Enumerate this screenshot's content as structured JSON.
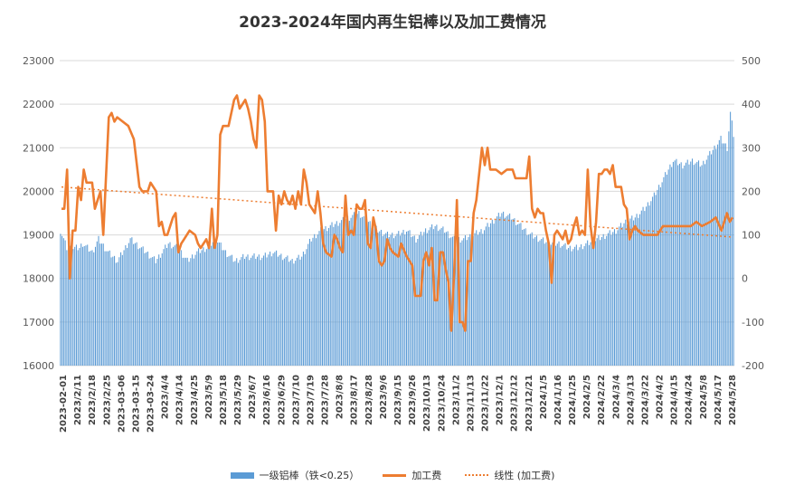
{
  "chart_data": {
    "type": "bar+line",
    "title": "2023-2024年国内再生铝棒以及加工费情况",
    "legend": [
      "一级铝棒（铁<0.25）",
      "加工费",
      "线性 (加工费)"
    ],
    "legend_position": "bottom",
    "grid": true,
    "y_left": {
      "min": 16000,
      "max": 23000,
      "ticks": [
        16000,
        17000,
        18000,
        19000,
        20000,
        21000,
        22000,
        23000
      ]
    },
    "y_right": {
      "min": -200,
      "max": 500,
      "ticks": [
        -200,
        -100,
        0,
        100,
        200,
        300,
        400,
        500
      ]
    },
    "x_tick_labels": [
      "2023-02-01",
      "2023/2/11",
      "2023/2/18",
      "2023/2/25",
      "2023-03-06",
      "2023-03-15",
      "2023-03-24",
      "2023/4/4",
      "2023/4/14",
      "2023/4/25",
      "2023/5/9",
      "2023/5/18",
      "2023/5/29",
      "2023/6/7",
      "2023/6/16",
      "2023/6/29",
      "2023/7/10",
      "2023/7/19",
      "2023/7/28",
      "2023/8/8",
      "2023/8/17",
      "2023/8/28",
      "2023/9/6",
      "2023/9/15",
      "2023/9/26",
      "2023/10/13",
      "2023/10/24",
      "2023/11/2",
      "2023/11/13",
      "2023/11/22",
      "2023/12/1",
      "2023/12/12",
      "2023/12/21",
      "2024/1/5",
      "2024/1/16",
      "2024/1/25",
      "2024/2/5",
      "2024/2/22",
      "2024/3/4",
      "2024/3/13",
      "2024/3/22",
      "2024/4/2",
      "2024/4/15",
      "2024/4/24",
      "2024/5/8",
      "2024/5/17",
      "2024/5/28"
    ],
    "bar_series": {
      "name": "一级铝棒（铁<0.25）",
      "color": "#5b9bd5",
      "keypoints": [
        [
          0,
          19100
        ],
        [
          2,
          18900
        ],
        [
          4,
          18700
        ],
        [
          12,
          18700
        ],
        [
          14,
          18800
        ],
        [
          20,
          18600
        ],
        [
          24,
          18900
        ],
        [
          30,
          18600
        ],
        [
          36,
          18400
        ],
        [
          44,
          18900
        ],
        [
          54,
          18600
        ],
        [
          60,
          18400
        ],
        [
          68,
          18800
        ],
        [
          74,
          18700
        ],
        [
          80,
          18400
        ],
        [
          86,
          18600
        ],
        [
          92,
          18700
        ],
        [
          98,
          18900
        ],
        [
          104,
          18600
        ],
        [
          110,
          18400
        ],
        [
          116,
          18500
        ],
        [
          122,
          18500
        ],
        [
          128,
          18500
        ],
        [
          134,
          18600
        ],
        [
          140,
          18500
        ],
        [
          146,
          18400
        ],
        [
          152,
          18500
        ],
        [
          158,
          18900
        ],
        [
          164,
          19100
        ],
        [
          170,
          19200
        ],
        [
          176,
          19300
        ],
        [
          182,
          19400
        ],
        [
          188,
          19500
        ],
        [
          194,
          19300
        ],
        [
          200,
          19100
        ],
        [
          206,
          19000
        ],
        [
          212,
          19000
        ],
        [
          218,
          19100
        ],
        [
          224,
          18900
        ],
        [
          230,
          19100
        ],
        [
          236,
          19200
        ],
        [
          242,
          19100
        ],
        [
          248,
          18900
        ],
        [
          254,
          18900
        ],
        [
          260,
          19000
        ],
        [
          266,
          19100
        ],
        [
          272,
          19300
        ],
        [
          278,
          19500
        ],
        [
          284,
          19400
        ],
        [
          290,
          19200
        ],
        [
          296,
          19000
        ],
        [
          302,
          18900
        ],
        [
          308,
          18800
        ],
        [
          314,
          18800
        ],
        [
          320,
          18700
        ],
        [
          326,
          18700
        ],
        [
          332,
          18800
        ],
        [
          338,
          18900
        ],
        [
          344,
          19000
        ],
        [
          350,
          19100
        ],
        [
          356,
          19300
        ],
        [
          362,
          19400
        ],
        [
          368,
          19600
        ],
        [
          374,
          19900
        ],
        [
          380,
          20300
        ],
        [
          386,
          20700
        ],
        [
          392,
          20600
        ],
        [
          398,
          20700
        ],
        [
          404,
          20600
        ],
        [
          410,
          20900
        ],
        [
          416,
          21200
        ],
        [
          420,
          21000
        ],
        [
          422,
          21800
        ],
        [
          424,
          21300
        ]
      ]
    },
    "line_series": {
      "name": "加工费",
      "color": "#ed7d31",
      "keypoints": [
        [
          0,
          160
        ],
        [
          2,
          160
        ],
        [
          4,
          250
        ],
        [
          6,
          0
        ],
        [
          8,
          110
        ],
        [
          10,
          110
        ],
        [
          12,
          210
        ],
        [
          14,
          180
        ],
        [
          16,
          250
        ],
        [
          18,
          220
        ],
        [
          22,
          220
        ],
        [
          24,
          160
        ],
        [
          28,
          200
        ],
        [
          30,
          100
        ],
        [
          34,
          370
        ],
        [
          36,
          380
        ],
        [
          38,
          360
        ],
        [
          40,
          370
        ],
        [
          44,
          360
        ],
        [
          48,
          350
        ],
        [
          52,
          320
        ],
        [
          56,
          210
        ],
        [
          58,
          200
        ],
        [
          62,
          200
        ],
        [
          64,
          220
        ],
        [
          68,
          200
        ],
        [
          70,
          120
        ],
        [
          72,
          130
        ],
        [
          74,
          100
        ],
        [
          76,
          100
        ],
        [
          80,
          140
        ],
        [
          82,
          150
        ],
        [
          84,
          60
        ],
        [
          86,
          80
        ],
        [
          88,
          90
        ],
        [
          92,
          110
        ],
        [
          96,
          100
        ],
        [
          98,
          80
        ],
        [
          100,
          70
        ],
        [
          104,
          90
        ],
        [
          106,
          70
        ],
        [
          108,
          160
        ],
        [
          110,
          70
        ],
        [
          112,
          100
        ],
        [
          114,
          330
        ],
        [
          116,
          350
        ],
        [
          120,
          350
        ],
        [
          124,
          410
        ],
        [
          126,
          420
        ],
        [
          128,
          390
        ],
        [
          132,
          410
        ],
        [
          134,
          390
        ],
        [
          136,
          360
        ],
        [
          138,
          320
        ],
        [
          140,
          300
        ],
        [
          142,
          420
        ],
        [
          144,
          410
        ],
        [
          146,
          360
        ],
        [
          148,
          200
        ],
        [
          152,
          200
        ],
        [
          154,
          110
        ],
        [
          156,
          190
        ],
        [
          158,
          170
        ],
        [
          160,
          200
        ],
        [
          162,
          180
        ],
        [
          164,
          170
        ],
        [
          166,
          190
        ],
        [
          168,
          160
        ],
        [
          170,
          200
        ],
        [
          172,
          170
        ],
        [
          174,
          250
        ],
        [
          176,
          220
        ],
        [
          178,
          170
        ],
        [
          180,
          160
        ],
        [
          182,
          150
        ],
        [
          184,
          200
        ],
        [
          186,
          150
        ],
        [
          188,
          80
        ],
        [
          190,
          60
        ],
        [
          194,
          50
        ],
        [
          196,
          100
        ],
        [
          198,
          90
        ],
        [
          200,
          70
        ],
        [
          202,
          60
        ],
        [
          204,
          190
        ],
        [
          206,
          100
        ],
        [
          208,
          110
        ],
        [
          210,
          100
        ],
        [
          212,
          170
        ],
        [
          214,
          160
        ],
        [
          216,
          160
        ],
        [
          218,
          180
        ],
        [
          220,
          80
        ],
        [
          222,
          70
        ],
        [
          224,
          140
        ],
        [
          226,
          110
        ],
        [
          228,
          40
        ],
        [
          230,
          30
        ],
        [
          232,
          40
        ],
        [
          234,
          90
        ],
        [
          236,
          70
        ],
        [
          238,
          60
        ],
        [
          242,
          50
        ],
        [
          244,
          80
        ],
        [
          248,
          50
        ],
        [
          252,
          30
        ],
        [
          254,
          -40
        ],
        [
          258,
          -40
        ],
        [
          260,
          40
        ],
        [
          262,
          60
        ],
        [
          264,
          30
        ],
        [
          266,
          70
        ],
        [
          268,
          -50
        ],
        [
          270,
          -50
        ],
        [
          272,
          60
        ],
        [
          274,
          60
        ],
        [
          276,
          20
        ],
        [
          278,
          -10
        ],
        [
          280,
          -120
        ],
        [
          282,
          10
        ],
        [
          284,
          180
        ],
        [
          286,
          -100
        ],
        [
          288,
          -100
        ],
        [
          290,
          -120
        ],
        [
          292,
          40
        ],
        [
          294,
          40
        ],
        [
          296,
          150
        ],
        [
          298,
          180
        ],
        [
          300,
          240
        ],
        [
          302,
          300
        ],
        [
          304,
          260
        ],
        [
          306,
          300
        ],
        [
          308,
          250
        ],
        [
          312,
          250
        ],
        [
          316,
          240
        ],
        [
          320,
          250
        ],
        [
          324,
          250
        ],
        [
          326,
          230
        ],
        [
          330,
          230
        ],
        [
          334,
          230
        ],
        [
          336,
          280
        ],
        [
          338,
          160
        ],
        [
          340,
          140
        ],
        [
          342,
          160
        ],
        [
          344,
          150
        ],
        [
          346,
          150
        ],
        [
          348,
          110
        ],
        [
          350,
          80
        ],
        [
          352,
          -10
        ],
        [
          354,
          100
        ],
        [
          356,
          110
        ],
        [
          358,
          100
        ],
        [
          360,
          90
        ],
        [
          362,
          110
        ],
        [
          364,
          80
        ],
        [
          366,
          90
        ],
        [
          368,
          120
        ],
        [
          370,
          140
        ],
        [
          372,
          100
        ],
        [
          374,
          110
        ],
        [
          376,
          100
        ],
        [
          378,
          250
        ],
        [
          380,
          120
        ],
        [
          382,
          70
        ],
        [
          384,
          130
        ],
        [
          386,
          240
        ],
        [
          388,
          240
        ],
        [
          390,
          250
        ],
        [
          392,
          250
        ],
        [
          394,
          240
        ],
        [
          396,
          260
        ],
        [
          398,
          210
        ],
        [
          402,
          210
        ],
        [
          404,
          170
        ],
        [
          406,
          160
        ],
        [
          408,
          90
        ],
        [
          410,
          110
        ],
        [
          412,
          120
        ],
        [
          414,
          110
        ],
        [
          418,
          100
        ],
        [
          424,
          100
        ],
        [
          428,
          100
        ],
        [
          432,
          120
        ],
        [
          438,
          120
        ],
        [
          444,
          120
        ],
        [
          448,
          120
        ],
        [
          452,
          120
        ],
        [
          456,
          130
        ],
        [
          460,
          120
        ],
        [
          466,
          130
        ],
        [
          470,
          140
        ],
        [
          474,
          110
        ],
        [
          476,
          130
        ],
        [
          478,
          150
        ],
        [
          480,
          130
        ],
        [
          482,
          140
        ]
      ]
    },
    "trend_series": {
      "name": "线性 (加工费)",
      "start": 210,
      "end": 95
    }
  }
}
